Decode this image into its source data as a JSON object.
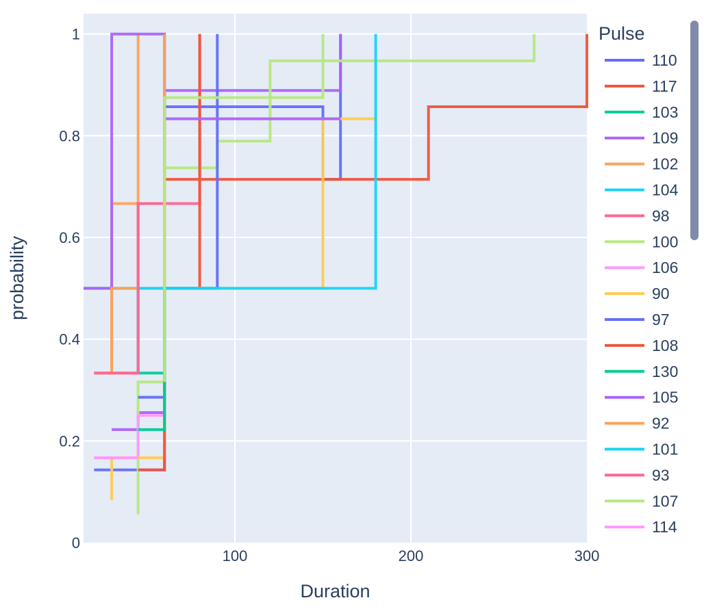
{
  "chart_data": {
    "type": "line",
    "line_shape": "step",
    "title": "",
    "xlabel": "Duration",
    "ylabel": "probability",
    "xlim": [
      14,
      300
    ],
    "ylim": [
      0,
      1.04
    ],
    "xticks": [
      100,
      200,
      300
    ],
    "yticks": [
      0,
      0.2,
      0.4,
      0.6,
      0.8,
      1
    ],
    "ytick_labels": [
      "0",
      "0.2",
      "0.4",
      "0.6",
      "0.8",
      "1"
    ],
    "grid": true,
    "plot_background": "#e5ecf6",
    "legend": {
      "title": "Pulse",
      "position": "right",
      "scrollable": true
    },
    "series": [
      {
        "name": "110",
        "color": "#636efa",
        "x": [
          20,
          60,
          60,
          150,
          150,
          160,
          160
        ],
        "y": [
          0.1429,
          0.1429,
          0.8571,
          0.8571,
          0.7143,
          0.8571,
          1.0
        ]
      },
      {
        "name": "117",
        "color": "#ef553b",
        "x": [
          60,
          60,
          210,
          210,
          300,
          300
        ],
        "y": [
          0.5,
          0.7143,
          0.7143,
          0.8571,
          0.8571,
          1.0
        ]
      },
      {
        "name": "103",
        "color": "#00cc96",
        "x": [
          14,
          20,
          30,
          45,
          60,
          60
        ],
        "y": [
          0.5,
          0.5,
          0.5,
          0.3333,
          0.3333,
          0.5
        ]
      },
      {
        "name": "109",
        "color": "#ab63fa",
        "x": [
          30,
          30,
          45,
          45,
          60,
          60,
          160,
          160
        ],
        "y": [
          0.2222,
          0.2222,
          0.2222,
          0.2556,
          0.3333,
          0.8889,
          0.8889,
          1.0
        ]
      },
      {
        "name": "102",
        "color": "#ffa15a",
        "x": [
          20,
          30,
          30,
          45,
          45
        ],
        "y": [
          0.3333,
          0.3333,
          0.6667,
          0.6667,
          1.0
        ]
      },
      {
        "name": "104",
        "color": "#19d3f3",
        "x": [
          45,
          45,
          60,
          60
        ],
        "y": [
          0.3333,
          0.6667,
          0.6667,
          1.0
        ]
      },
      {
        "name": "98",
        "color": "#ff6692",
        "x": [
          20,
          45,
          45,
          80,
          80
        ],
        "y": [
          0.3333,
          0.3333,
          0.6667,
          0.6667,
          1.0
        ]
      },
      {
        "name": "100",
        "color": "#b6e880",
        "x": [
          45,
          45,
          60,
          60,
          90,
          90,
          120,
          120,
          270,
          270
        ],
        "y": [
          0.0556,
          0.3158,
          0.3158,
          0.7368,
          0.7368,
          0.7895,
          0.7895,
          0.9474,
          0.9474,
          1.0
        ]
      },
      {
        "name": "106",
        "color": "#ff97ff",
        "x": [
          20,
          45,
          45,
          60
        ],
        "y": [
          0.1667,
          0.1667,
          0.25,
          0.25
        ]
      },
      {
        "name": "90",
        "color": "#fecb52",
        "x": [
          30,
          30,
          60,
          60,
          150,
          150,
          180
        ],
        "y": [
          0.0833,
          0.1667,
          0.1667,
          0.5,
          0.5,
          0.8333,
          0.8333
        ]
      },
      {
        "name": "97",
        "color": "#636efa",
        "x": [
          45,
          60,
          60,
          90,
          90
        ],
        "y": [
          0.2857,
          0.2857,
          0.5,
          0.5,
          1.0
        ]
      },
      {
        "name": "108",
        "color": "#ef553b",
        "x": [
          45,
          60,
          60,
          80,
          80
        ],
        "y": [
          0.1429,
          0.1429,
          0.5,
          0.5,
          1.0
        ]
      },
      {
        "name": "130",
        "color": "#00cc96",
        "x": [
          45,
          60,
          60,
          90
        ],
        "y": [
          0.2222,
          0.2222,
          0.5,
          0.5
        ]
      },
      {
        "name": "105",
        "color": "#ab63fa",
        "x": [
          14,
          30,
          30,
          60,
          60,
          160
        ],
        "y": [
          0.5,
          0.5,
          1.0,
          1.0,
          0.8333,
          0.8333
        ]
      },
      {
        "name": "92",
        "color": "#ffa15a",
        "x": [
          20,
          30,
          30,
          60,
          60
        ],
        "y": [
          0.3333,
          0.3333,
          0.5,
          0.5,
          1.0
        ]
      },
      {
        "name": "101",
        "color": "#19d3f3",
        "x": [
          45,
          45,
          60,
          60,
          180,
          180
        ],
        "y": [
          0.3333,
          0.5,
          0.5,
          0.5,
          0.5,
          1.0
        ]
      },
      {
        "name": "93",
        "color": "#ff6692",
        "x": [
          20,
          45,
          45,
          60,
          60
        ],
        "y": [
          0.3333,
          0.3333,
          0.6667,
          0.6667,
          0.6667
        ]
      },
      {
        "name": "107",
        "color": "#b6e880",
        "x": [
          60,
          60,
          150,
          150
        ],
        "y": [
          0.3158,
          0.875,
          0.875,
          1.0
        ]
      },
      {
        "name": "114",
        "color": "#ff97ff",
        "x": [
          20,
          30,
          30,
          45
        ],
        "y": [
          0.1667,
          0.1667,
          0.1667,
          0.1667
        ]
      }
    ]
  }
}
